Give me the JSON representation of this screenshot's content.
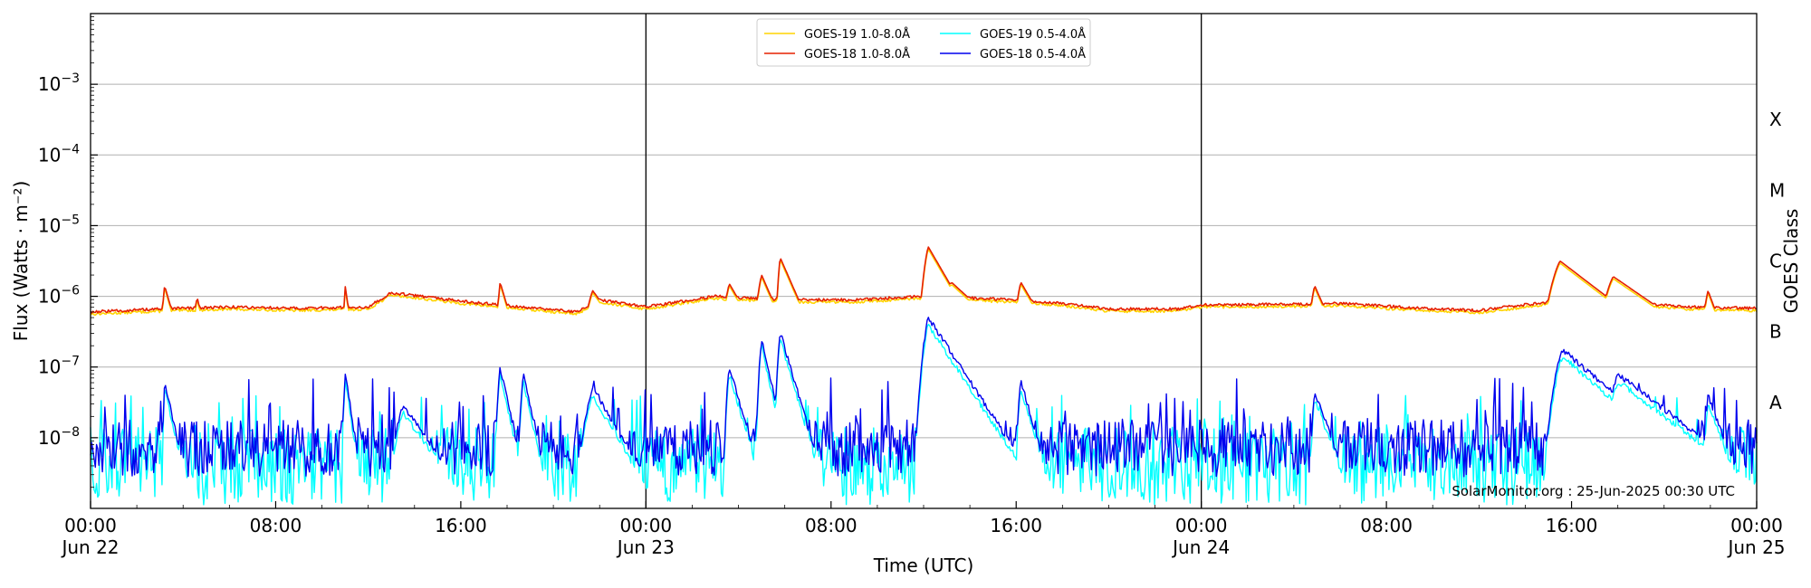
{
  "chart_data": {
    "type": "line",
    "xlabel": "Time (UTC)",
    "ylabel": "Flux (Watts · m⁻²)",
    "ylabel_right": "GOES Class",
    "x_range_hours": [
      0,
      72
    ],
    "y_range_log10": [
      -9,
      -2
    ],
    "y_scale": "log",
    "grid": "horizontal",
    "legend_position": "top-center",
    "day_dividers_hours": [
      24,
      48
    ],
    "x_ticks": [
      {
        "h": 0,
        "time": "00:00",
        "date": "Jun 22"
      },
      {
        "h": 8,
        "time": "08:00",
        "date": ""
      },
      {
        "h": 16,
        "time": "16:00",
        "date": ""
      },
      {
        "h": 24,
        "time": "00:00",
        "date": "Jun 23"
      },
      {
        "h": 32,
        "time": "08:00",
        "date": ""
      },
      {
        "h": 40,
        "time": "16:00",
        "date": ""
      },
      {
        "h": 48,
        "time": "00:00",
        "date": "Jun 24"
      },
      {
        "h": 56,
        "time": "08:00",
        "date": ""
      },
      {
        "h": 64,
        "time": "16:00",
        "date": ""
      },
      {
        "h": 72,
        "time": "00:00",
        "date": "Jun 25"
      }
    ],
    "y_ticks": [
      {
        "exp": -3,
        "base": "10",
        "power": "−3"
      },
      {
        "exp": -4,
        "base": "10",
        "power": "−4"
      },
      {
        "exp": -5,
        "base": "10",
        "power": "−5"
      },
      {
        "exp": -6,
        "base": "10",
        "power": "−6"
      },
      {
        "exp": -7,
        "base": "10",
        "power": "−7"
      },
      {
        "exp": -8,
        "base": "10",
        "power": "−8"
      }
    ],
    "goes_classes": [
      {
        "label": "X",
        "log10_center": -3.5
      },
      {
        "label": "M",
        "log10_center": -4.5
      },
      {
        "label": "C",
        "log10_center": -5.5
      },
      {
        "label": "B",
        "log10_center": -6.5
      },
      {
        "label": "A",
        "log10_center": -7.5
      }
    ],
    "annotation": "SolarMonitor.org : 25-Jun-2025 00:30 UTC",
    "series": [
      {
        "name": "GOES-19 1.0-8.0Å",
        "color": "#ffd400",
        "kind": "long",
        "offset": -0.03,
        "baseline": [
          [
            0,
            -6.22
          ],
          [
            3,
            -6.18
          ],
          [
            6,
            -6.15
          ],
          [
            9,
            -6.17
          ],
          [
            12,
            -6.15
          ],
          [
            13,
            -5.95
          ],
          [
            16,
            -6.07
          ],
          [
            21,
            -6.22
          ],
          [
            22,
            -6.05
          ],
          [
            24,
            -6.15
          ],
          [
            27,
            -6.0
          ],
          [
            30,
            -6.05
          ],
          [
            33,
            -6.05
          ],
          [
            36,
            -6.0
          ],
          [
            40,
            -6.05
          ],
          [
            42,
            -6.1
          ],
          [
            44,
            -6.18
          ],
          [
            47,
            -6.18
          ],
          [
            48,
            -6.12
          ],
          [
            50,
            -6.12
          ],
          [
            54,
            -6.1
          ],
          [
            58,
            -6.18
          ],
          [
            60,
            -6.2
          ],
          [
            62,
            -6.12
          ],
          [
            63,
            -6.08
          ],
          [
            65,
            -6.0
          ],
          [
            67,
            -6.1
          ],
          [
            69,
            -6.15
          ],
          [
            72,
            -6.17
          ]
        ]
      },
      {
        "name": "GOES-18 1.0-8.0Å",
        "color": "#e62000",
        "kind": "long",
        "offset": 0,
        "baseline": [
          [
            0,
            -6.22
          ],
          [
            3,
            -6.18
          ],
          [
            6,
            -6.15
          ],
          [
            9,
            -6.17
          ],
          [
            12,
            -6.15
          ],
          [
            13,
            -5.95
          ],
          [
            16,
            -6.07
          ],
          [
            21,
            -6.22
          ],
          [
            22,
            -6.05
          ],
          [
            24,
            -6.15
          ],
          [
            27,
            -6.0
          ],
          [
            30,
            -6.05
          ],
          [
            33,
            -6.05
          ],
          [
            36,
            -6.0
          ],
          [
            40,
            -6.05
          ],
          [
            42,
            -6.1
          ],
          [
            44,
            -6.18
          ],
          [
            47,
            -6.18
          ],
          [
            48,
            -6.12
          ],
          [
            50,
            -6.12
          ],
          [
            54,
            -6.1
          ],
          [
            58,
            -6.18
          ],
          [
            60,
            -6.2
          ],
          [
            62,
            -6.12
          ],
          [
            63,
            -6.08
          ],
          [
            65,
            -6.0
          ],
          [
            67,
            -6.1
          ],
          [
            69,
            -6.15
          ],
          [
            72,
            -6.17
          ]
        ],
        "flares": [
          {
            "t": 3.2,
            "peak": -5.85,
            "rise": 0.1,
            "decay": 0.4
          },
          {
            "t": 4.6,
            "peak": -6.0,
            "rise": 0.1,
            "decay": 0.3
          },
          {
            "t": 11.0,
            "peak": -5.85,
            "rise": 0.05,
            "decay": 0.2
          },
          {
            "t": 17.7,
            "peak": -5.8,
            "rise": 0.1,
            "decay": 0.4
          },
          {
            "t": 21.7,
            "peak": -5.92,
            "rise": 0.3,
            "decay": 1.0
          },
          {
            "t": 27.6,
            "peak": -5.82,
            "rise": 0.2,
            "decay": 0.8
          },
          {
            "t": 29.0,
            "peak": -5.7,
            "rise": 0.2,
            "decay": 0.6
          },
          {
            "t": 29.8,
            "peak": -5.45,
            "rise": 0.1,
            "decay": 0.6
          },
          {
            "t": 36.2,
            "peak": -5.3,
            "rise": 0.2,
            "decay": 0.8
          },
          {
            "t": 37.2,
            "peak": -5.8,
            "rise": 0.3,
            "decay": 1.5
          },
          {
            "t": 40.2,
            "peak": -5.8,
            "rise": 0.2,
            "decay": 0.8
          },
          {
            "t": 52.9,
            "peak": -5.85,
            "rise": 0.2,
            "decay": 0.6
          },
          {
            "t": 63.5,
            "peak": -5.5,
            "rise": 0.4,
            "decay": 1.8
          },
          {
            "t": 65.8,
            "peak": -5.72,
            "rise": 0.4,
            "decay": 2.0
          },
          {
            "t": 69.9,
            "peak": -5.92,
            "rise": 0.2,
            "decay": 0.5
          }
        ]
      },
      {
        "name": "GOES-19 0.5-4.0Å",
        "color": "#00ffff",
        "kind": "short",
        "base_level": -8.4,
        "noise_amp": 0.55
      },
      {
        "name": "GOES-18 0.5-4.0Å",
        "color": "#0000ee",
        "kind": "short",
        "base_level": -8.15,
        "noise_amp": 0.4,
        "flares": [
          {
            "t": 3.2,
            "peak": -7.2,
            "rise": 0.05,
            "decay": 0.3
          },
          {
            "t": 11.0,
            "peak": -7.05,
            "rise": 0.05,
            "decay": 0.2
          },
          {
            "t": 13.5,
            "peak": -7.55,
            "rise": 0.3,
            "decay": 1.0
          },
          {
            "t": 17.7,
            "peak": -7.0,
            "rise": 0.1,
            "decay": 0.3
          },
          {
            "t": 18.7,
            "peak": -7.1,
            "rise": 0.1,
            "decay": 0.3
          },
          {
            "t": 21.7,
            "peak": -7.3,
            "rise": 0.3,
            "decay": 0.8
          },
          {
            "t": 27.6,
            "peak": -7.0,
            "rise": 0.1,
            "decay": 0.4
          },
          {
            "t": 29.0,
            "peak": -6.6,
            "rise": 0.1,
            "decay": 0.3
          },
          {
            "t": 29.8,
            "peak": -6.5,
            "rise": 0.1,
            "decay": 0.4
          },
          {
            "t": 36.2,
            "peak": -6.3,
            "rise": 0.2,
            "decay": 0.9
          },
          {
            "t": 37.2,
            "peak": -7.15,
            "rise": 0.3,
            "decay": 1.2
          },
          {
            "t": 40.2,
            "peak": -7.2,
            "rise": 0.1,
            "decay": 0.4
          },
          {
            "t": 52.9,
            "peak": -7.35,
            "rise": 0.1,
            "decay": 0.5
          },
          {
            "t": 63.6,
            "peak": -6.75,
            "rise": 0.3,
            "decay": 1.6
          },
          {
            "t": 66.0,
            "peak": -7.1,
            "rise": 0.3,
            "decay": 1.8
          },
          {
            "t": 69.9,
            "peak": -7.4,
            "rise": 0.1,
            "decay": 0.5
          }
        ]
      }
    ]
  }
}
